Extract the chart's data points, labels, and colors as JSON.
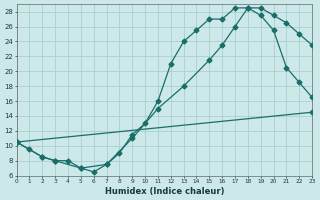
{
  "xlabel": "Humidex (Indice chaleur)",
  "bg_color": "#cce8e8",
  "grid_color": "#aacfcf",
  "line_color": "#1a6e6a",
  "xlim": [
    0,
    23
  ],
  "ylim": [
    6,
    29
  ],
  "yticks": [
    6,
    8,
    10,
    12,
    14,
    16,
    18,
    20,
    22,
    24,
    26,
    28
  ],
  "xticks": [
    0,
    1,
    2,
    3,
    4,
    5,
    6,
    7,
    8,
    9,
    10,
    11,
    12,
    13,
    14,
    15,
    16,
    17,
    18,
    19,
    20,
    21,
    22,
    23
  ],
  "line1_x": [
    0,
    1,
    2,
    3,
    4,
    5,
    6,
    7,
    8,
    9,
    10,
    11,
    12,
    13,
    14,
    15,
    16,
    17,
    18,
    19,
    20,
    21,
    22,
    23
  ],
  "line1_y": [
    10.5,
    9.5,
    8.5,
    8.0,
    8.0,
    7.0,
    6.5,
    7.5,
    9.0,
    11.5,
    13.0,
    16.0,
    21.0,
    24.0,
    25.5,
    27.0,
    27.0,
    28.5,
    28.5,
    27.5,
    25.5,
    20.5,
    18.5,
    16.5
  ],
  "line2_x": [
    0,
    2,
    3,
    5,
    7,
    9,
    11,
    13,
    15,
    16,
    17,
    18,
    19,
    20,
    21,
    22,
    23
  ],
  "line2_y": [
    10.5,
    8.5,
    8.0,
    7.0,
    7.5,
    11.0,
    15.0,
    18.0,
    21.5,
    23.5,
    26.0,
    28.5,
    28.5,
    27.5,
    26.5,
    25.0,
    23.5
  ],
  "line3_x": [
    0,
    23
  ],
  "line3_y": [
    10.5,
    14.5
  ]
}
